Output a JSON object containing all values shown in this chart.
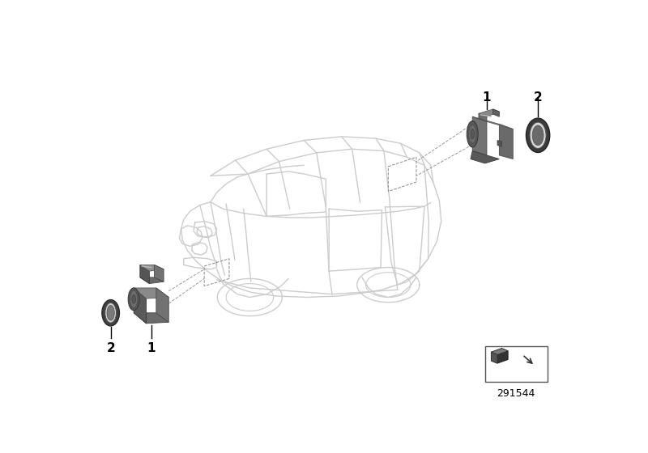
{
  "bg_color": "#ffffff",
  "part_number": "291544",
  "figure_size": [
    8.0,
    5.6
  ],
  "dpi": 100,
  "car_color": "#cccccc",
  "car_lw": 1.0,
  "sensor_dark": "#7a7a7a",
  "sensor_mid": "#909090",
  "sensor_light": "#aaaaaa",
  "ring_dark": "#3a3a3a",
  "ring_mid": "#ffffff",
  "label_color": "#000000",
  "dash_color": "#999999",
  "box_color": "#555555"
}
